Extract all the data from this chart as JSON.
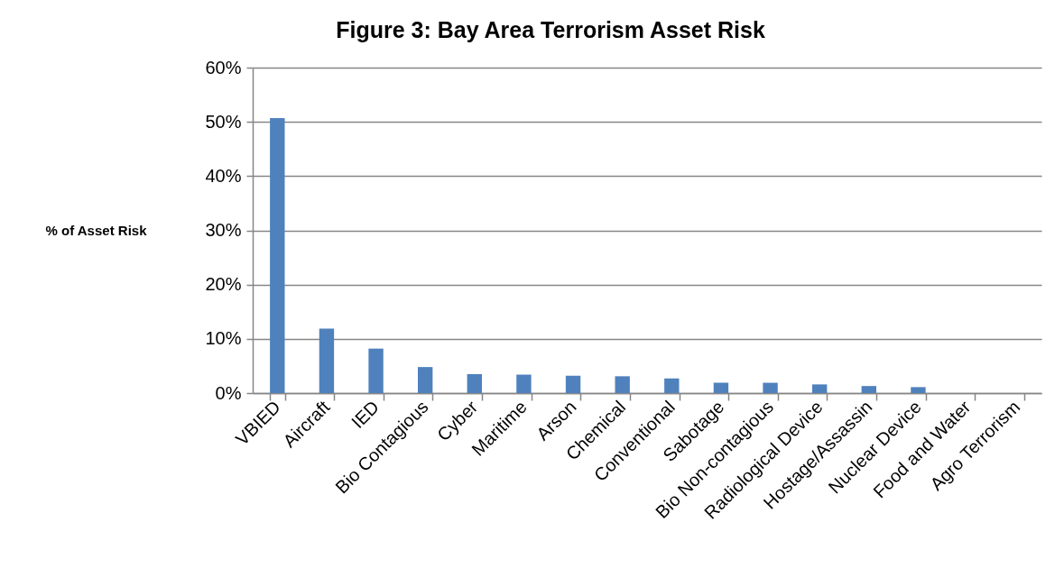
{
  "chart_data": {
    "type": "bar",
    "title": "Figure 3: Bay Area Terrorism Asset Risk",
    "ylabel": "% of Asset Risk",
    "categories": [
      "VBIED",
      "Aircraft",
      "IED",
      "Bio Contagious",
      "Cyber",
      "Maritime",
      "Arson",
      "Chemical",
      "Conventional",
      "Sabotage",
      "Bio Non-contagious",
      "Radiological Device",
      "Hostage/Assassin",
      "Nuclear Device",
      "Food and Water",
      "Agro Terrorism"
    ],
    "values": [
      50.7,
      11.9,
      8.2,
      4.8,
      3.5,
      3.4,
      3.2,
      3.1,
      2.7,
      1.9,
      1.9,
      1.6,
      1.3,
      1.1,
      0,
      0
    ],
    "color": "#4f81bd",
    "ylim": [
      0,
      60
    ],
    "yticks": [
      {
        "value": 0,
        "label": "0%"
      },
      {
        "value": 10,
        "label": "10%"
      },
      {
        "value": 20,
        "label": "20%"
      },
      {
        "value": 30,
        "label": "30%"
      },
      {
        "value": 40,
        "label": "40%"
      },
      {
        "value": 50,
        "label": "50%"
      },
      {
        "value": 60,
        "label": "60%"
      }
    ],
    "grid": "y"
  }
}
